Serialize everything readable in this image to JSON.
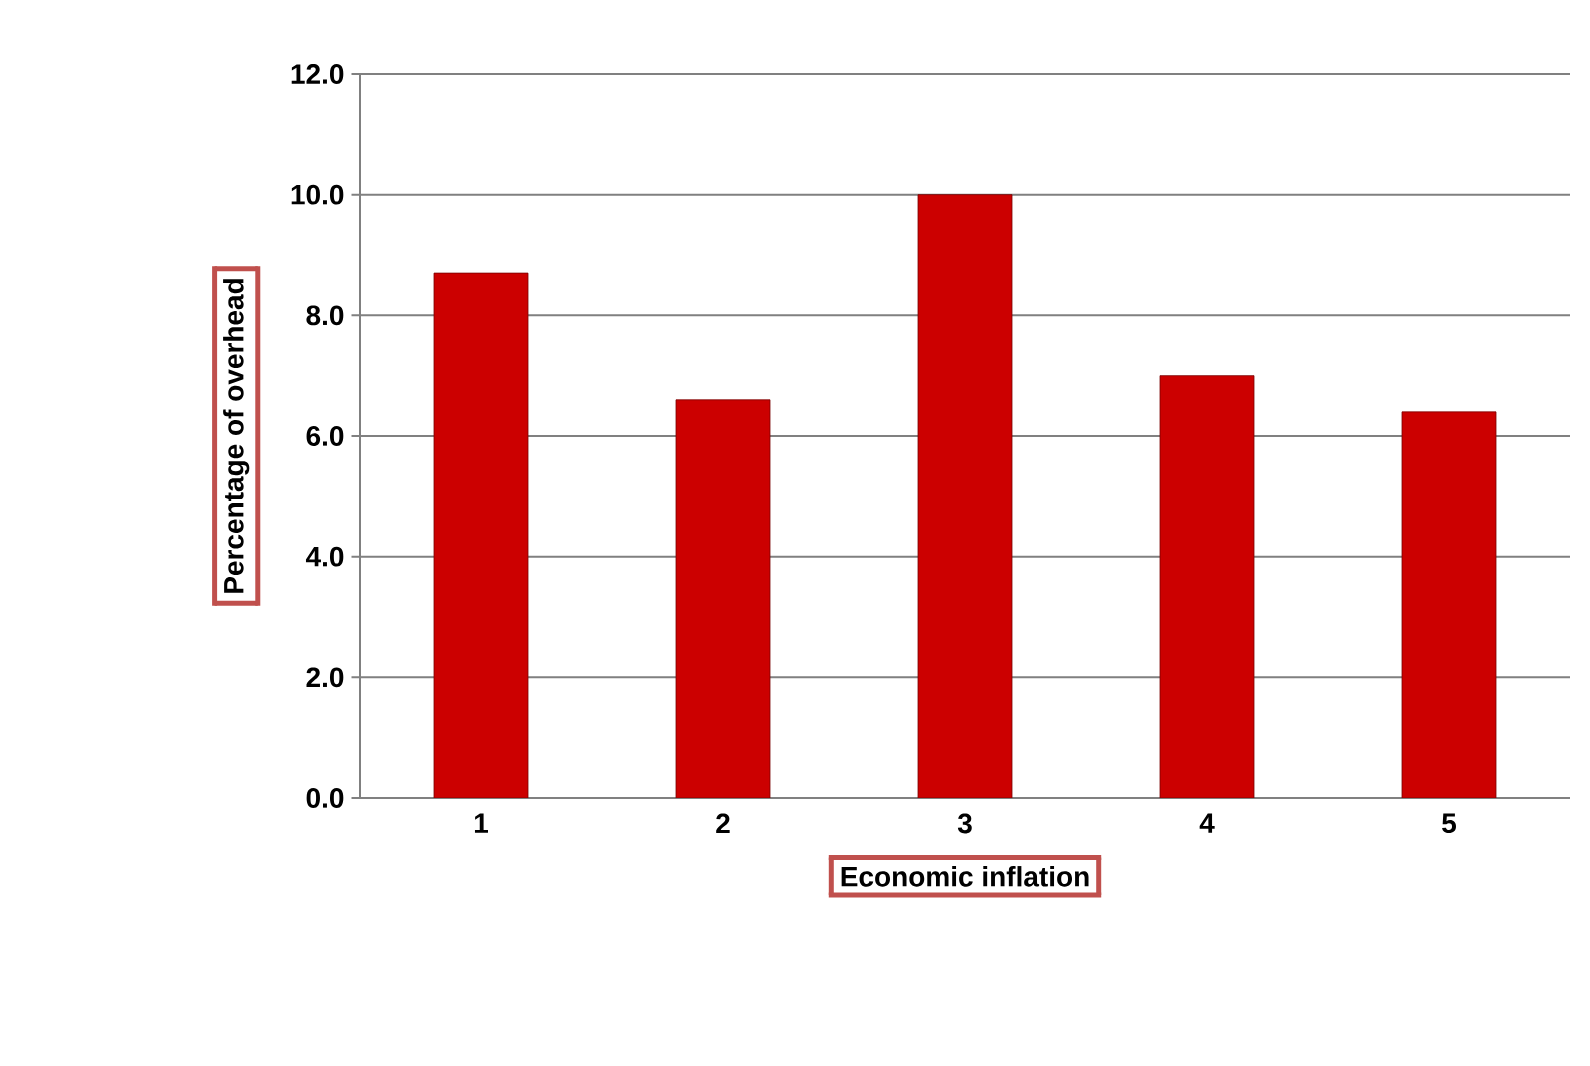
{
  "chart_data": {
    "type": "bar",
    "xlabel": "Economic inflation",
    "ylabel": "Percentage of  overhead",
    "categories": [
      "1",
      "2",
      "3",
      "4",
      "5"
    ],
    "values": [
      8.7,
      6.6,
      10.0,
      7.0,
      6.4
    ],
    "color": "#cc0000",
    "ylim": [
      0,
      12
    ],
    "yticks": [
      {
        "value": 0,
        "label": "0.0"
      },
      {
        "value": 2,
        "label": "2.0"
      },
      {
        "value": 4,
        "label": "4.0"
      },
      {
        "value": 6,
        "label": "6.0"
      },
      {
        "value": 8,
        "label": "8.0"
      },
      {
        "value": 10,
        "label": "10.0"
      },
      {
        "value": 12,
        "label": "12.0"
      }
    ],
    "grid": "y"
  }
}
